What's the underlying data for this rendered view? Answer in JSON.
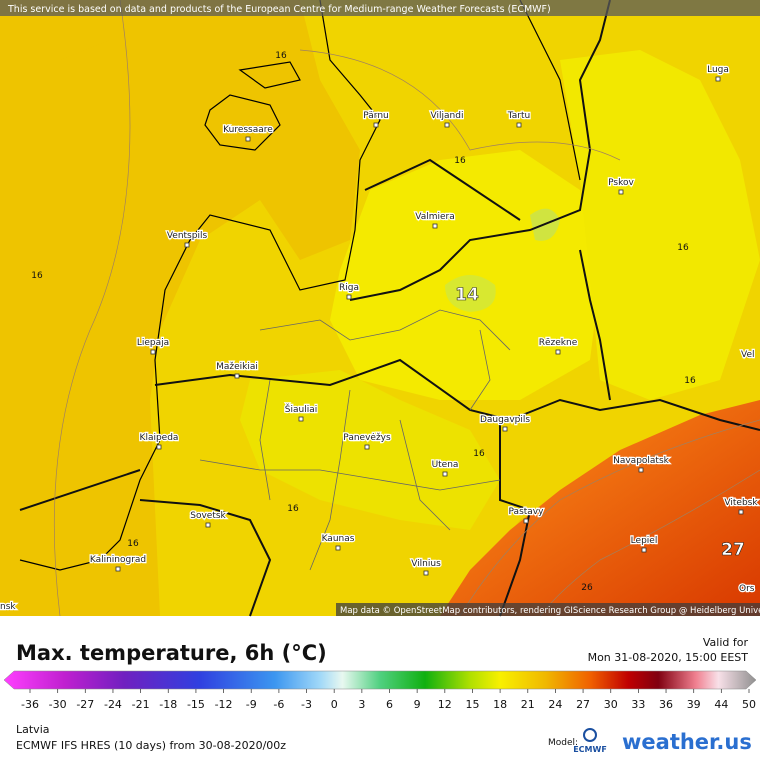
{
  "notice": "This service is based on data and products of the European Centre for Medium-range Weather Forecasts (ECMWF)",
  "map": {
    "cities": [
      "Kuressaare",
      "Pärnu",
      "Viljandi",
      "Tartu",
      "Luga",
      "Pskov",
      "Valmiera",
      "Ventspils",
      "Riga",
      "Liepaja",
      "Rēzekne",
      "Mažeikiai",
      "Šiauliai",
      "Klaipeda",
      "Panevėžys",
      "Daugavpils",
      "Navapolatsk",
      "Utena",
      "Vitebsk",
      "Sovetsk",
      "Pastavy",
      "Kaunas",
      "Lepiel",
      "Kalininograd",
      "Vilnius"
    ],
    "edge_labels": [
      "Vel",
      "Ors",
      "nsk"
    ],
    "contour_labels": [
      16,
      16,
      16,
      16,
      16,
      16,
      16,
      16,
      26
    ],
    "highlight_labels": [
      14,
      27
    ],
    "attribution": "Map data © OpenStreetMap contributors, rendering GIScience Research Group @ Heidelberg University"
  },
  "legend": {
    "title": "Max. temperature, 6h (°C)",
    "valid_label": "Valid for",
    "valid_time": "Mon 31-08-2020, 15:00 EEST",
    "ticks": [
      -36,
      -30,
      -27,
      -24,
      -21,
      -18,
      -15,
      -12,
      -9,
      -6,
      -3,
      0,
      3,
      6,
      9,
      12,
      15,
      18,
      21,
      24,
      27,
      30,
      33,
      36,
      39,
      44,
      50
    ]
  },
  "footer": {
    "region": "Latvia",
    "model": "ECMWF IFS HRES (10 days) from 30-08-2020/00z",
    "model_label": "Model:",
    "ecmwf": "ECMWF",
    "brand": "weather.us"
  }
}
